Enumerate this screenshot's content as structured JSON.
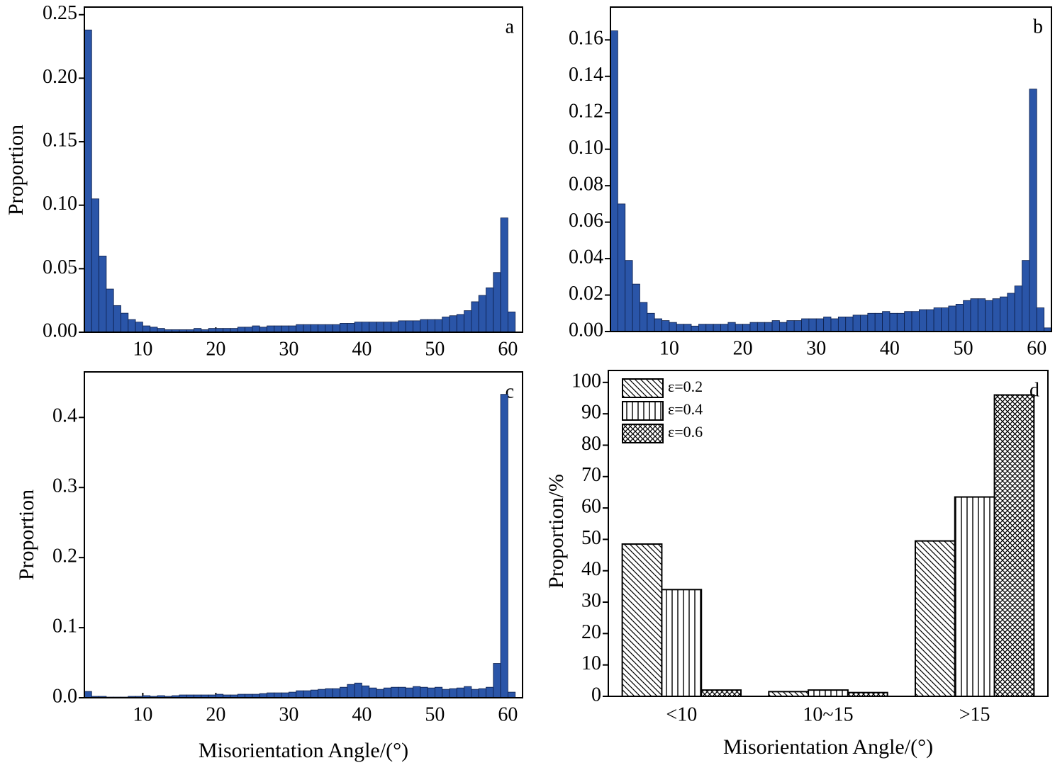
{
  "chart_data": [
    {
      "type": "histogram",
      "annotation": "a",
      "ylabel": "Proportion",
      "color": "#2a55a8",
      "bins": [
        2,
        3,
        4,
        5,
        6,
        7,
        8,
        9,
        10,
        11,
        12,
        13,
        14,
        15,
        16,
        17,
        18,
        19,
        20,
        21,
        22,
        23,
        24,
        25,
        26,
        27,
        28,
        29,
        30,
        31,
        32,
        33,
        34,
        35,
        36,
        37,
        38,
        39,
        40,
        41,
        42,
        43,
        44,
        45,
        46,
        47,
        48,
        49,
        50,
        51,
        52,
        53,
        54,
        55,
        56,
        57,
        58,
        59,
        60,
        61,
        62
      ],
      "values": [
        0.238,
        0.105,
        0.06,
        0.034,
        0.021,
        0.015,
        0.01,
        0.008,
        0.005,
        0.004,
        0.003,
        0.002,
        0.002,
        0.002,
        0.002,
        0.003,
        0.002,
        0.003,
        0.003,
        0.003,
        0.003,
        0.004,
        0.004,
        0.005,
        0.004,
        0.005,
        0.005,
        0.005,
        0.005,
        0.006,
        0.006,
        0.006,
        0.006,
        0.006,
        0.006,
        0.007,
        0.007,
        0.008,
        0.008,
        0.008,
        0.008,
        0.008,
        0.008,
        0.009,
        0.009,
        0.009,
        0.01,
        0.01,
        0.01,
        0.012,
        0.013,
        0.014,
        0.017,
        0.024,
        0.029,
        0.035,
        0.047,
        0.09,
        0.016,
        0
      ],
      "xlim": [
        2,
        62
      ],
      "xticks": [
        10,
        20,
        30,
        40,
        50,
        60
      ],
      "ylim": [
        0,
        0.256
      ],
      "yticks": [
        {
          "value": 0,
          "label": "0.00"
        },
        {
          "value": 0.05,
          "label": "0.05"
        },
        {
          "value": 0.1,
          "label": "0.10"
        },
        {
          "value": 0.15,
          "label": "0.15"
        },
        {
          "value": 0.2,
          "label": "0.20"
        },
        {
          "value": 0.25,
          "label": "0.25"
        }
      ]
    },
    {
      "type": "histogram",
      "annotation": "b",
      "color": "#2a55a8",
      "bins": [
        2,
        3,
        4,
        5,
        6,
        7,
        8,
        9,
        10,
        11,
        12,
        13,
        14,
        15,
        16,
        17,
        18,
        19,
        20,
        21,
        22,
        23,
        24,
        25,
        26,
        27,
        28,
        29,
        30,
        31,
        32,
        33,
        34,
        35,
        36,
        37,
        38,
        39,
        40,
        41,
        42,
        43,
        44,
        45,
        46,
        47,
        48,
        49,
        50,
        51,
        52,
        53,
        54,
        55,
        56,
        57,
        58,
        59,
        60,
        61,
        62
      ],
      "values": [
        0.165,
        0.07,
        0.039,
        0.026,
        0.016,
        0.01,
        0.007,
        0.006,
        0.005,
        0.004,
        0.004,
        0.003,
        0.004,
        0.004,
        0.004,
        0.004,
        0.005,
        0.004,
        0.004,
        0.005,
        0.005,
        0.005,
        0.006,
        0.005,
        0.006,
        0.006,
        0.007,
        0.007,
        0.007,
        0.008,
        0.007,
        0.008,
        0.008,
        0.009,
        0.009,
        0.01,
        0.01,
        0.011,
        0.01,
        0.01,
        0.011,
        0.011,
        0.012,
        0.012,
        0.013,
        0.013,
        0.014,
        0.015,
        0.017,
        0.018,
        0.018,
        0.017,
        0.018,
        0.019,
        0.021,
        0.025,
        0.039,
        0.133,
        0.013,
        0.002
      ],
      "xlim": [
        2,
        62
      ],
      "xticks": [
        10,
        20,
        30,
        40,
        50,
        60
      ],
      "ylim": [
        0,
        0.178
      ],
      "yticks": [
        {
          "value": 0,
          "label": "0.00"
        },
        {
          "value": 0.02,
          "label": "0.02"
        },
        {
          "value": 0.04,
          "label": "0.04"
        },
        {
          "value": 0.06,
          "label": "0.06"
        },
        {
          "value": 0.08,
          "label": "0.08"
        },
        {
          "value": 0.1,
          "label": "0.10"
        },
        {
          "value": 0.12,
          "label": "0.12"
        },
        {
          "value": 0.14,
          "label": "0.14"
        },
        {
          "value": 0.16,
          "label": "0.16"
        }
      ]
    },
    {
      "type": "histogram",
      "annotation": "c",
      "ylabel": "Proportion",
      "xlabel": "Misorientation Angle/(°)",
      "color": "#2a55a8",
      "bins": [
        2,
        3,
        4,
        5,
        6,
        7,
        8,
        9,
        10,
        11,
        12,
        13,
        14,
        15,
        16,
        17,
        18,
        19,
        20,
        21,
        22,
        23,
        24,
        25,
        26,
        27,
        28,
        29,
        30,
        31,
        32,
        33,
        34,
        35,
        36,
        37,
        38,
        39,
        40,
        41,
        42,
        43,
        44,
        45,
        46,
        47,
        48,
        49,
        50,
        51,
        52,
        53,
        54,
        55,
        56,
        57,
        58,
        59,
        60,
        61,
        62
      ],
      "values": [
        0.009,
        0.002,
        0.002,
        0.001,
        0.001,
        0.001,
        0.002,
        0.002,
        0.003,
        0.002,
        0.003,
        0.002,
        0.003,
        0.004,
        0.004,
        0.004,
        0.004,
        0.004,
        0.005,
        0.004,
        0.004,
        0.005,
        0.005,
        0.005,
        0.006,
        0.007,
        0.007,
        0.007,
        0.008,
        0.01,
        0.01,
        0.011,
        0.012,
        0.013,
        0.013,
        0.015,
        0.019,
        0.021,
        0.017,
        0.014,
        0.012,
        0.014,
        0.015,
        0.015,
        0.014,
        0.016,
        0.015,
        0.014,
        0.015,
        0.012,
        0.013,
        0.014,
        0.016,
        0.012,
        0.013,
        0.015,
        0.049,
        0.433,
        0.008,
        0
      ],
      "xlim": [
        2,
        62
      ],
      "xticks": [
        10,
        20,
        30,
        40,
        50,
        60
      ],
      "ylim": [
        0,
        0.465
      ],
      "yticks": [
        {
          "value": 0,
          "label": "0.0"
        },
        0.1,
        0.2,
        0.3,
        0.4
      ]
    },
    {
      "type": "bar",
      "annotation": "d",
      "ylabel": "Proportion/%",
      "xlabel": "Misorientation Angle/(°)",
      "categories": [
        "<10",
        "10~15",
        ">15"
      ],
      "series": [
        {
          "name": "ε=0.2",
          "hatch": "diagonal",
          "color": "#000000",
          "values": [
            48.5,
            1.5,
            49.5
          ]
        },
        {
          "name": "ε=0.4",
          "hatch": "vertical",
          "color": "#000000",
          "values": [
            34,
            2,
            63.5
          ]
        },
        {
          "name": "ε=0.6",
          "hatch": "cross",
          "color": "#000000",
          "values": [
            2,
            1.2,
            96
          ]
        }
      ],
      "ylim": [
        0,
        103.8
      ],
      "yticks": [
        0,
        10,
        20,
        30,
        40,
        50,
        60,
        70,
        80,
        90,
        100
      ],
      "legend": "upper left"
    }
  ]
}
